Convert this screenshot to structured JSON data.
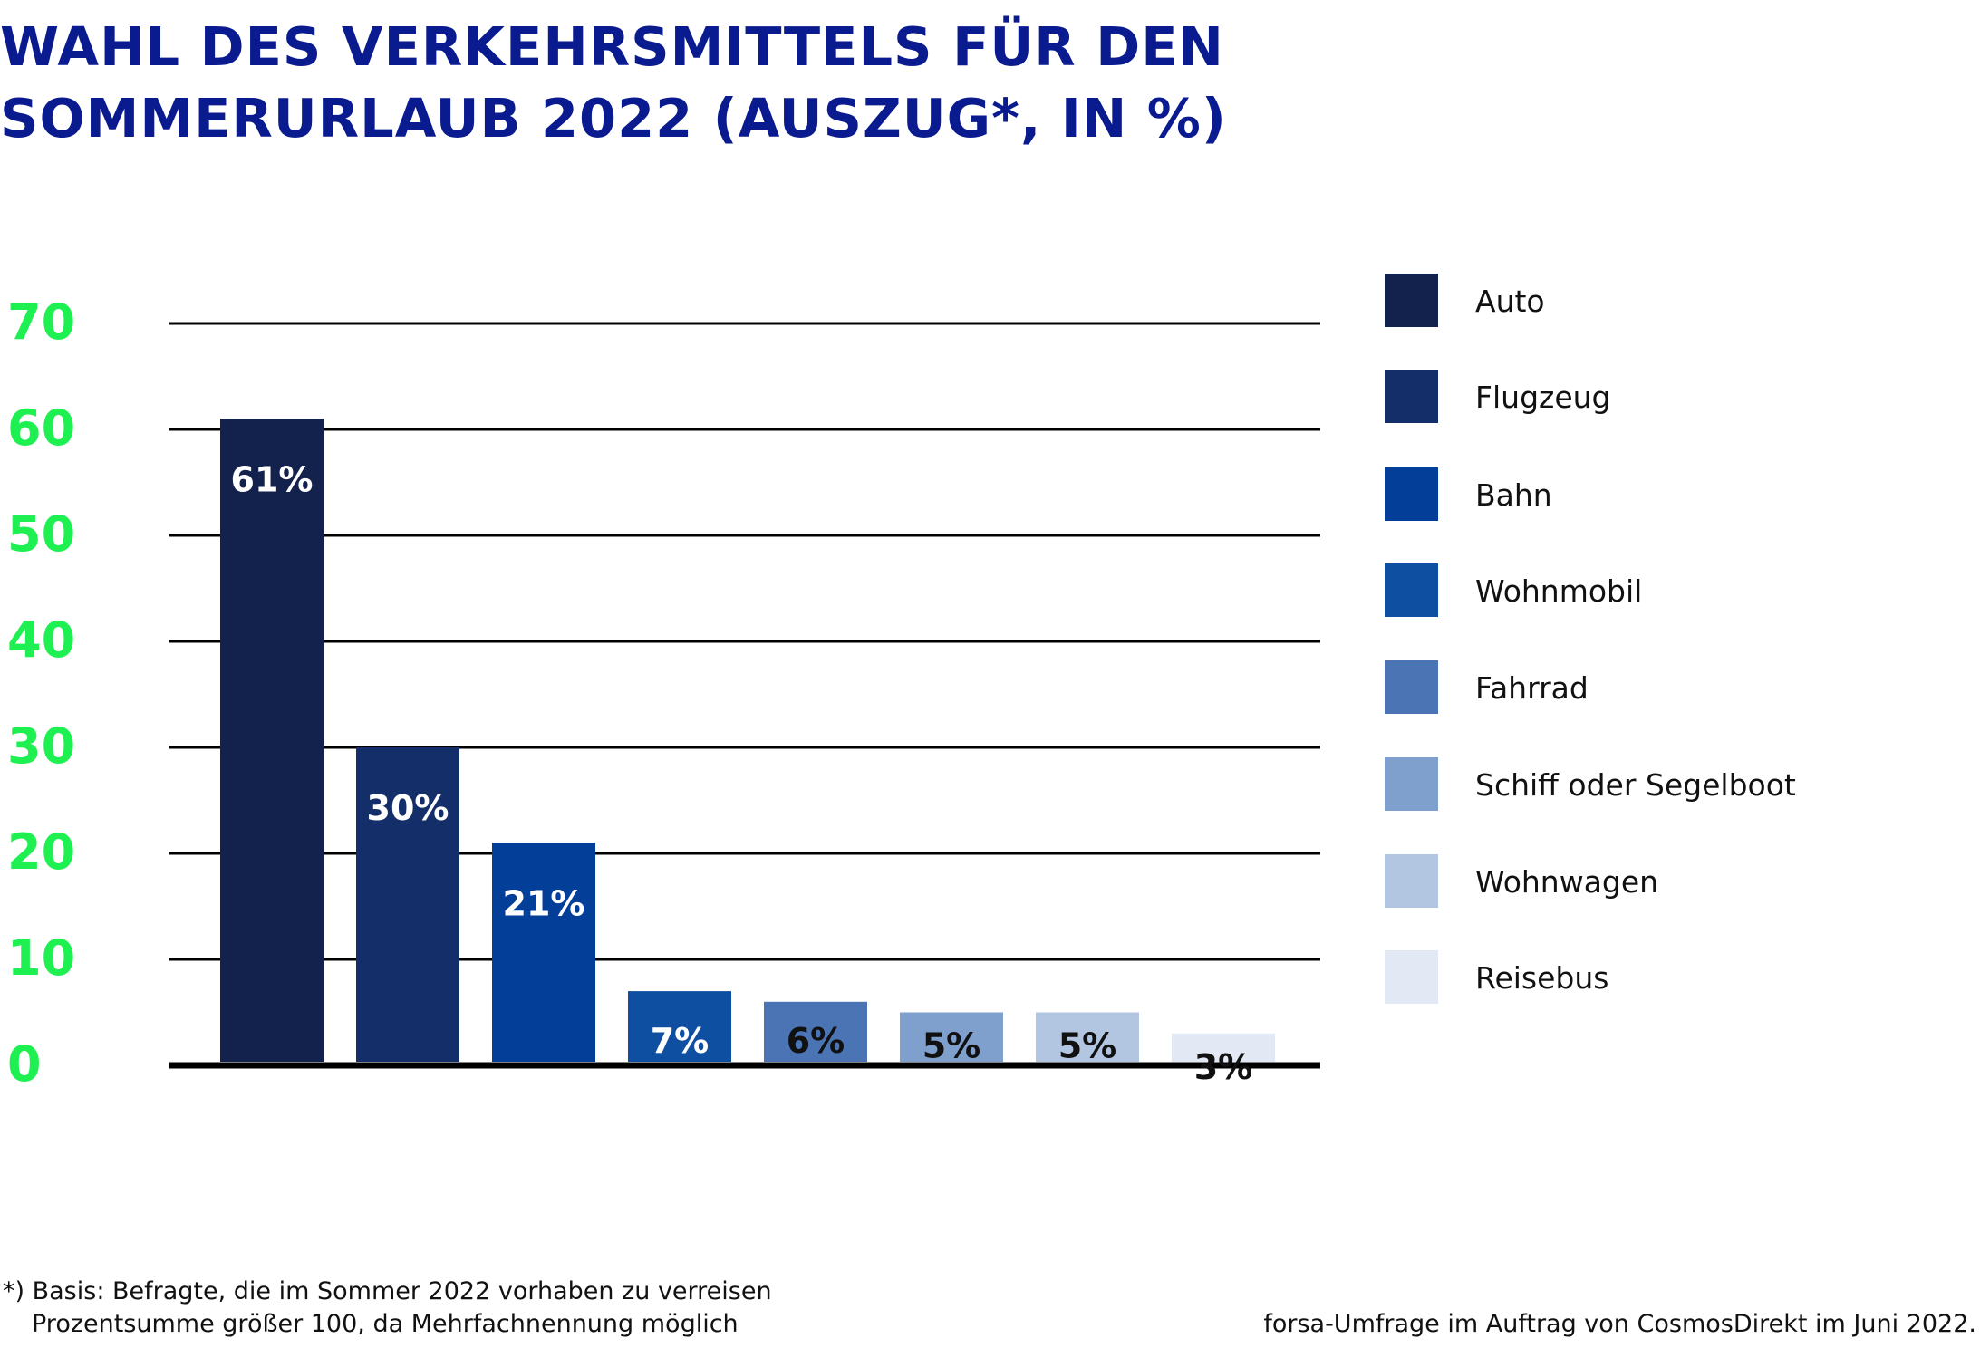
{
  "title_lines": [
    "WAHL DES VERKEHRSMITTELS FÜR DEN",
    "SOMMERURLAUB 2022 (AUSZUG*, IN %)"
  ],
  "footnote": {
    "basis": "*) Basis: Befragte, die im Sommer 2022 vorhaben zu verreisen",
    "sum": "Prozentsumme größer 100, da Mehrfachnennung möglich",
    "source": "forsa-Umfrage im Auftrag von CosmosDirekt im Juni 2022."
  },
  "chart_data": {
    "type": "bar",
    "categories": [
      "Auto",
      "Flugzeug",
      "Bahn",
      "Wohnmobil",
      "Fahrrad",
      "Schiff oder Segelboot",
      "Wohnwagen",
      "Reisebus"
    ],
    "values": [
      61,
      30,
      21,
      7,
      6,
      5,
      5,
      3
    ],
    "data_labels": [
      "61%",
      "30%",
      "21%",
      "7%",
      "6%",
      "5%",
      "5%",
      "3%"
    ],
    "colors": [
      "#13214d",
      "#132e68",
      "#033f98",
      "#0e4fa1",
      "#4a74b4",
      "#7f9fcd",
      "#b2c6e2",
      "#e2e9f5"
    ],
    "label_colors": [
      "#ffffff",
      "#ffffff",
      "#ffffff",
      "#ffffff",
      "#111111",
      "#111111",
      "#111111",
      "#111111"
    ],
    "yticks": [
      "0",
      "10",
      "20",
      "30",
      "40",
      "50",
      "60",
      "70"
    ],
    "ylim": [
      0,
      70
    ],
    "grid": true,
    "legend_position": "right",
    "title": "WAHL DES VERKEHRSMITTELS FÜR DEN SOMMERURLAUB 2022 (AUSZUG*, IN %)",
    "xlabel": "",
    "ylabel": ""
  }
}
